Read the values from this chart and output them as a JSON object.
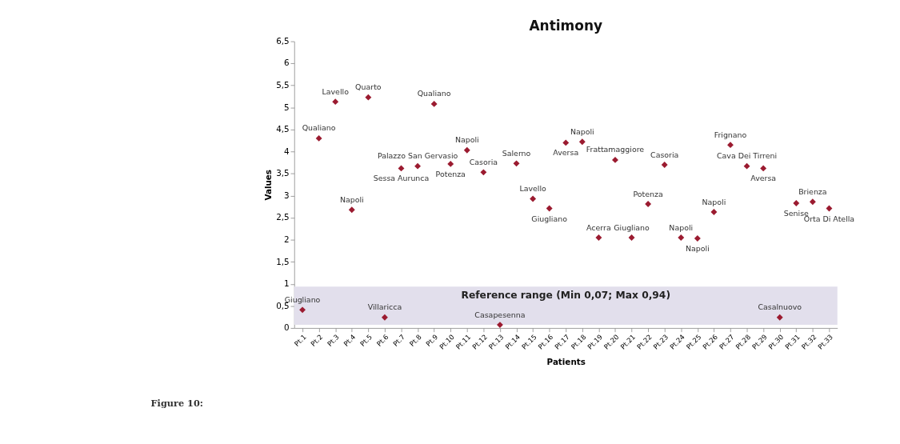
{
  "chart_data": {
    "type": "scatter",
    "title": "Antimony",
    "xlabel": "Patients",
    "ylabel": "Values",
    "categories": [
      "Pt.1",
      "Pt.2",
      "Pt.3",
      "Pt.4",
      "Pt.5",
      "Pt.6",
      "Pt.7",
      "Pt.8",
      "Pt.9",
      "Pt.10",
      "Pt.11",
      "Pt.12",
      "Pt.13",
      "Pt.14",
      "Pt.15",
      "Pt.16",
      "Pt.17",
      "Pt.18",
      "Pt.19",
      "Pt.20",
      "Pt.21",
      "Pt.22",
      "Pt.23",
      "Pt.24",
      "Pt.25",
      "Pt.26",
      "Pt.27",
      "Pt.28",
      "Pt.29",
      "Pt.30",
      "Pt.31",
      "Pt.32",
      "Pt.33"
    ],
    "series": [
      {
        "color": "#9b1b30",
        "values": [
          0.41,
          4.3,
          5.13,
          2.68,
          5.23,
          0.24,
          3.62,
          3.67,
          5.08,
          3.72,
          4.03,
          3.53,
          0.07,
          3.73,
          2.93,
          2.71,
          4.2,
          4.22,
          2.05,
          3.81,
          2.05,
          2.81,
          3.7,
          2.05,
          2.03,
          2.63,
          4.15,
          3.67,
          3.62,
          0.24,
          2.83,
          2.86,
          2.71
        ]
      }
    ],
    "marker": "diamond",
    "ylim": [
      0,
      6.5
    ],
    "yticks": [
      0,
      {
        "value": 0.5,
        "label": "0,5"
      },
      1,
      {
        "value": 1.5,
        "label": "1,5"
      },
      2,
      {
        "value": 2.5,
        "label": "2,5"
      },
      3,
      {
        "value": 3.5,
        "label": "3,5"
      },
      4,
      {
        "value": 4.5,
        "label": "4,5"
      },
      5,
      {
        "value": 5.5,
        "label": "5,5"
      },
      6,
      {
        "value": 6.5,
        "label": "6,5"
      }
    ],
    "grid": false,
    "bands": [
      {
        "axis": "y",
        "from": 0.07,
        "to": 0.94,
        "label": "Reference range  (Min 0,07; Max 0,94)",
        "color": "#e2dfec"
      }
    ],
    "annotations": [
      {
        "text": "Giugliano",
        "x": "Pt.1",
        "y": 0.41
      },
      {
        "text": "Qualiano",
        "x": "Pt.2",
        "y": 4.3
      },
      {
        "text": "Lavello",
        "x": "Pt.3",
        "y": 5.13
      },
      {
        "text": "Napoli",
        "x": "Pt.4",
        "y": 2.68
      },
      {
        "text": "Quarto",
        "x": "Pt.5",
        "y": 5.23
      },
      {
        "text": "Villaricca",
        "x": "Pt.6",
        "y": 0.24
      },
      {
        "text": "Sessa Aurunca",
        "x": "Pt.7",
        "y": 3.62
      },
      {
        "text": "Palazzo San Gervasio",
        "x": "Pt.8",
        "y": 3.67
      },
      {
        "text": "Qualiano",
        "x": "Pt.9",
        "y": 5.08
      },
      {
        "text": "Potenza",
        "x": "Pt.10",
        "y": 3.72
      },
      {
        "text": "Napoli",
        "x": "Pt.11",
        "y": 4.03
      },
      {
        "text": "Casoria",
        "x": "Pt.12",
        "y": 3.53
      },
      {
        "text": "Casapesenna",
        "x": "Pt.13",
        "y": 0.07
      },
      {
        "text": "Salerno",
        "x": "Pt.14",
        "y": 3.73
      },
      {
        "text": "Lavello",
        "x": "Pt.15",
        "y": 2.93
      },
      {
        "text": "Giugliano",
        "x": "Pt.16",
        "y": 2.71
      },
      {
        "text": "Aversa",
        "x": "Pt.17",
        "y": 4.2
      },
      {
        "text": "Napoli",
        "x": "Pt.18",
        "y": 4.22
      },
      {
        "text": "Acerra",
        "x": "Pt.19",
        "y": 2.05
      },
      {
        "text": "Frattamaggiore",
        "x": "Pt.20",
        "y": 3.81
      },
      {
        "text": "Giugliano",
        "x": "Pt.21",
        "y": 2.05
      },
      {
        "text": "Potenza",
        "x": "Pt.22",
        "y": 2.81
      },
      {
        "text": "Casoria",
        "x": "Pt.23",
        "y": 3.7
      },
      {
        "text": "Napoli",
        "x": "Pt.24",
        "y": 2.05
      },
      {
        "text": "Napoli",
        "x": "Pt.25",
        "y": 2.03
      },
      {
        "text": "Napoli",
        "x": "Pt.26",
        "y": 2.63
      },
      {
        "text": "Frignano",
        "x": "Pt.27",
        "y": 4.15
      },
      {
        "text": "Cava Dei Tirreni",
        "x": "Pt.28",
        "y": 3.67
      },
      {
        "text": "Aversa",
        "x": "Pt.29",
        "y": 3.62
      },
      {
        "text": "Casalnuovo",
        "x": "Pt.30",
        "y": 0.24
      },
      {
        "text": "Senise",
        "x": "Pt.31",
        "y": 2.83
      },
      {
        "text": "Brienza",
        "x": "Pt.32",
        "y": 2.86
      },
      {
        "text": "Orta Di Atella",
        "x": "Pt.33",
        "y": 2.71
      },
      "Figure 10:"
    ]
  }
}
